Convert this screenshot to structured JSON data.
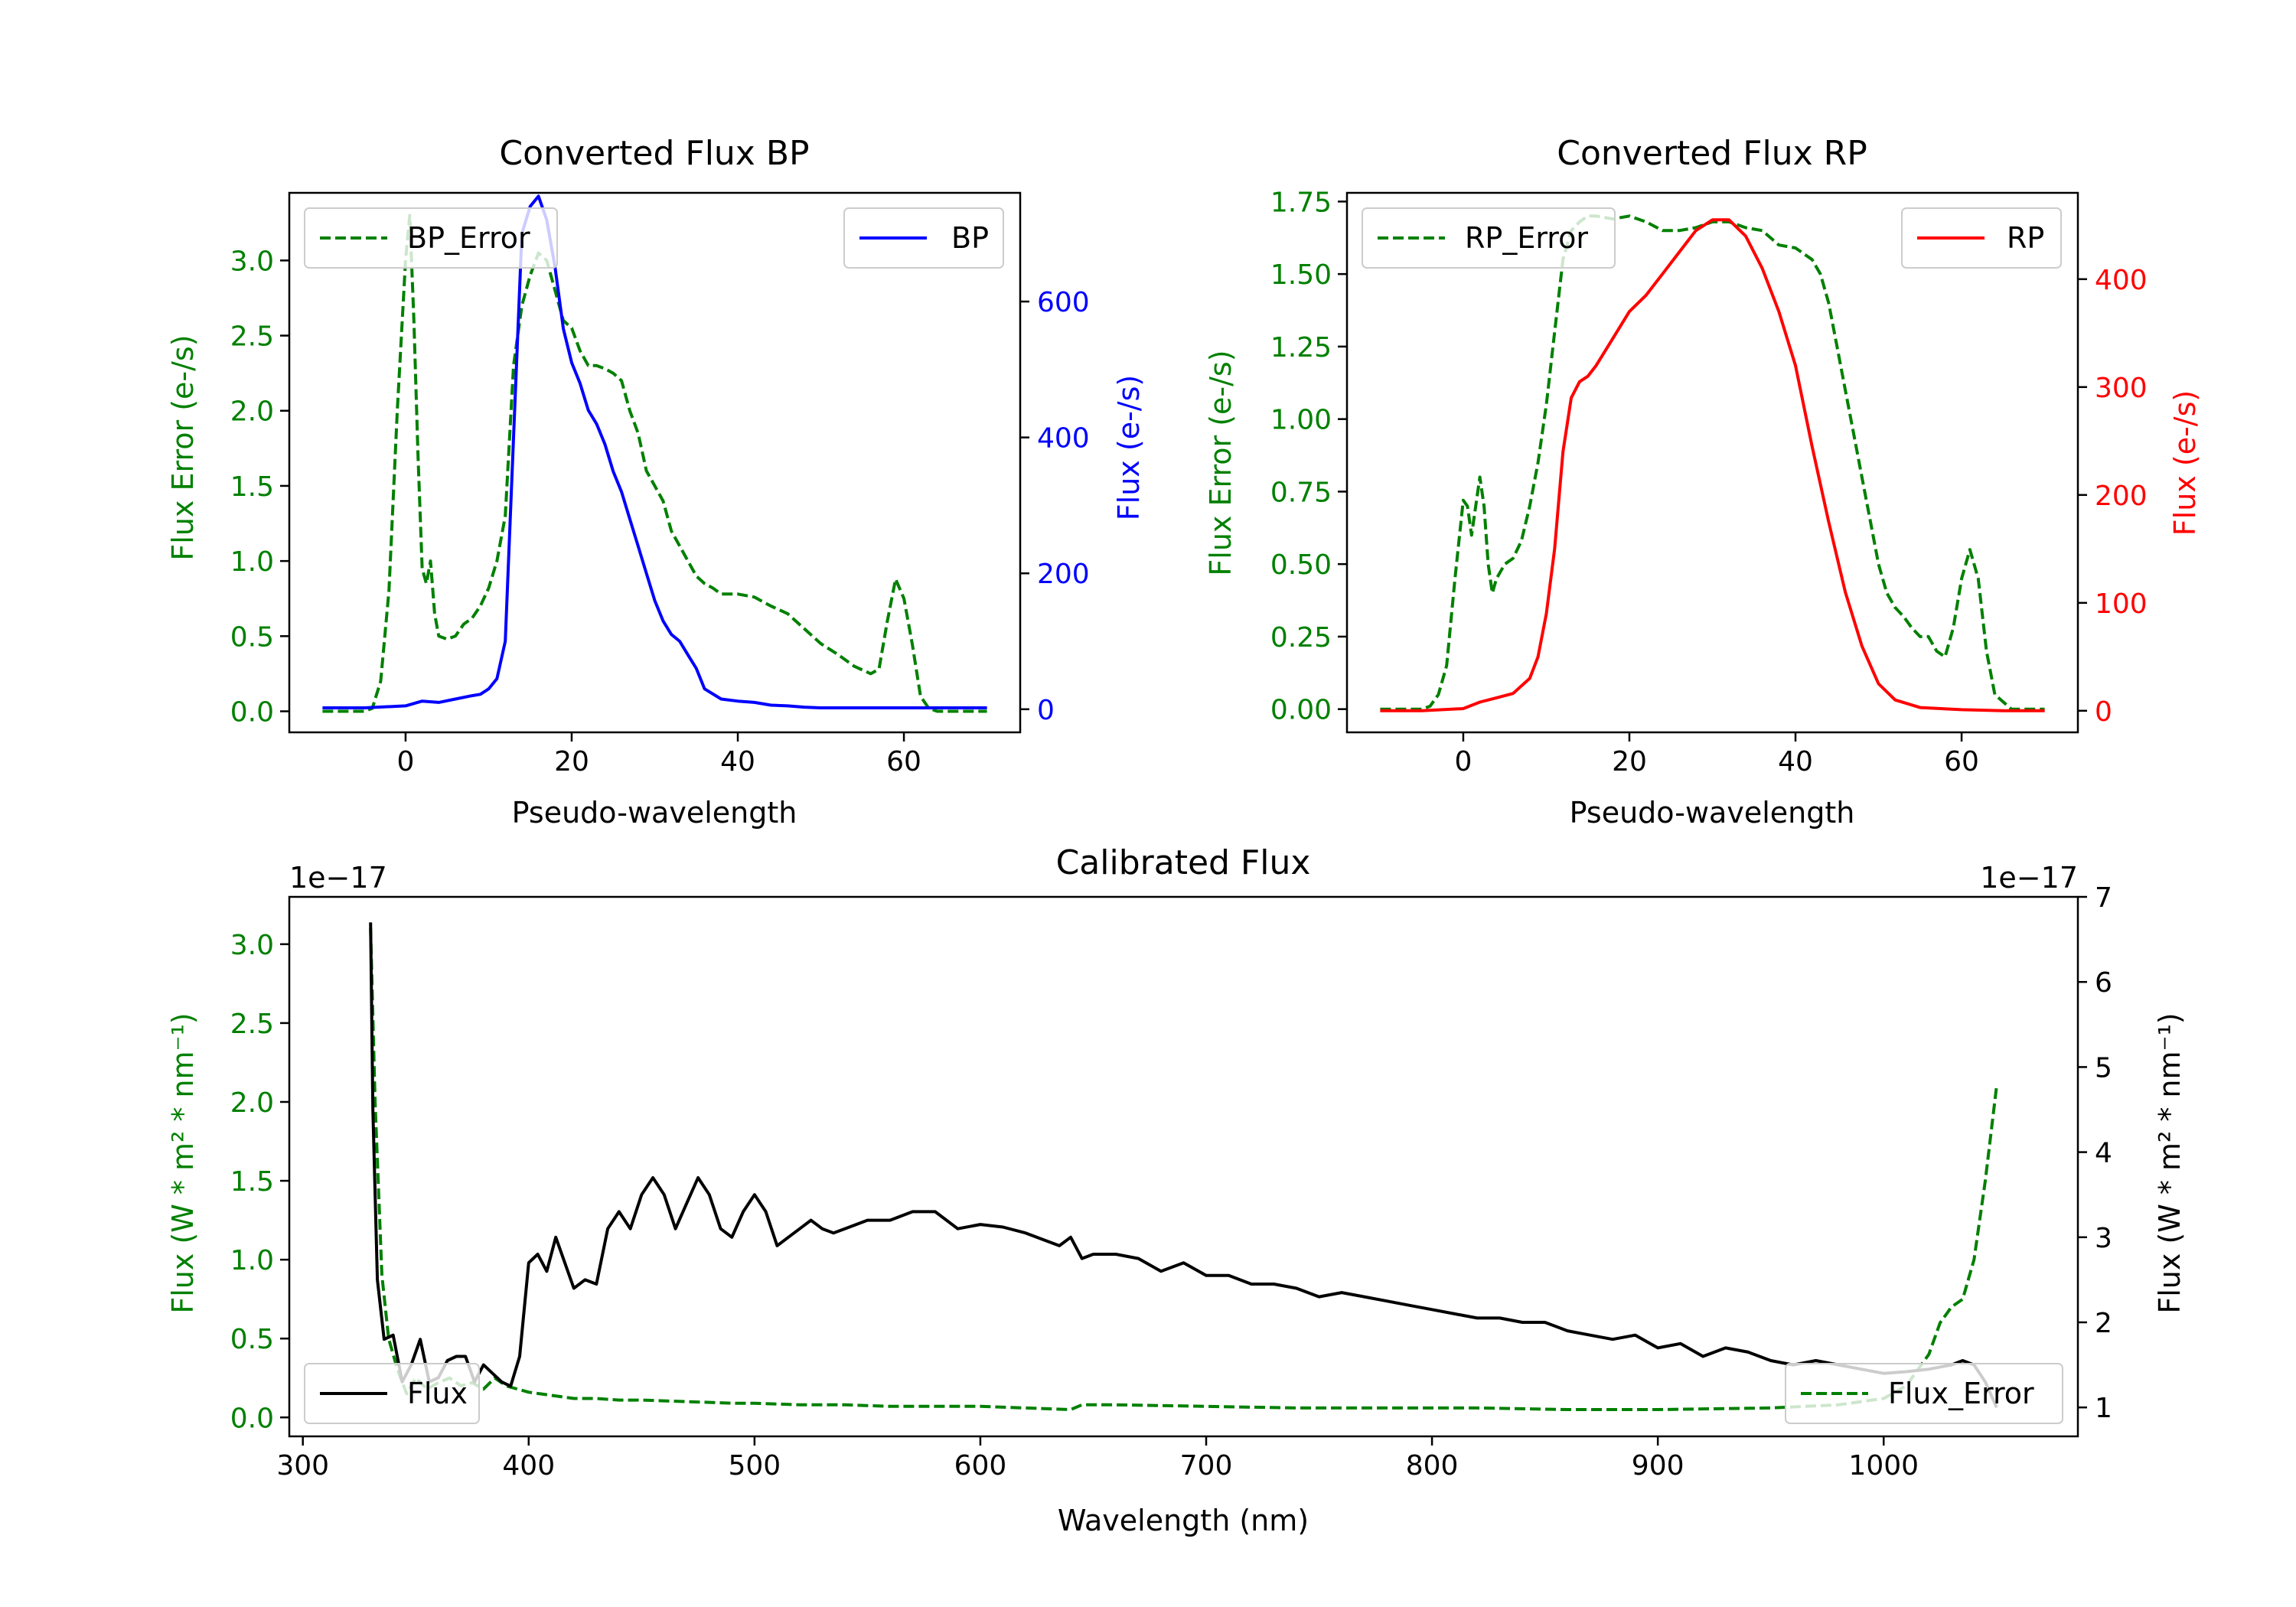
{
  "colors": {
    "green": "#008000",
    "blue": "#0000ff",
    "red": "#ff0000",
    "black": "#000000"
  },
  "chart_data": [
    {
      "id": "bp",
      "type": "line",
      "title": "Converted Flux BP",
      "xlabel": "Pseudo-wavelength",
      "ylabel_left": "Flux Error (e-/s)",
      "ylabel_right": "Flux (e-/s)",
      "xlim": [
        -14,
        74
      ],
      "ylim_left": [
        -0.14,
        3.45
      ],
      "ylim_right": [
        -34,
        760
      ],
      "xticks": [
        0,
        20,
        40,
        60
      ],
      "yticks_left": [
        "0.0",
        "0.5",
        "1.0",
        "1.5",
        "2.0",
        "2.5",
        "3.0"
      ],
      "yticks_right": [
        "0",
        "200",
        "400",
        "600"
      ],
      "series": [
        {
          "name": "BP_Error",
          "axis": "left",
          "style": "dashed",
          "color": "green",
          "x": [
            -10,
            -5,
            -4,
            -3,
            -2,
            -1,
            0,
            0.5,
            1,
            1.5,
            2,
            2.5,
            3,
            3.5,
            4,
            5,
            6,
            7,
            8,
            9,
            10,
            11,
            12,
            13,
            14,
            15,
            16,
            17,
            18,
            19,
            20,
            21,
            22,
            23,
            24,
            25,
            26,
            27,
            28,
            29,
            30,
            31,
            32,
            33,
            34,
            35,
            36,
            37,
            38,
            40,
            42,
            44,
            46,
            48,
            50,
            52,
            54,
            56,
            57,
            58,
            59,
            60,
            61,
            62,
            63,
            64,
            66,
            68,
            70
          ],
          "y": [
            0.0,
            0.0,
            0.02,
            0.2,
            0.8,
            2.0,
            3.0,
            3.3,
            2.6,
            1.7,
            0.95,
            0.85,
            1.0,
            0.65,
            0.5,
            0.48,
            0.5,
            0.58,
            0.62,
            0.7,
            0.82,
            1.0,
            1.3,
            2.3,
            2.7,
            2.9,
            3.05,
            3.0,
            2.8,
            2.6,
            2.55,
            2.4,
            2.3,
            2.3,
            2.28,
            2.25,
            2.2,
            2.0,
            1.85,
            1.6,
            1.5,
            1.4,
            1.2,
            1.1,
            1.0,
            0.9,
            0.85,
            0.82,
            0.78,
            0.78,
            0.76,
            0.7,
            0.65,
            0.55,
            0.45,
            0.38,
            0.3,
            0.25,
            0.28,
            0.6,
            0.88,
            0.75,
            0.45,
            0.1,
            0.02,
            0.0,
            0.0,
            0.0,
            0.0
          ]
        },
        {
          "name": "BP",
          "axis": "right",
          "style": "solid",
          "color": "blue",
          "x": [
            -10,
            -5,
            0,
            2,
            4,
            6,
            8,
            9,
            10,
            11,
            12,
            13,
            14,
            15,
            16,
            17,
            18,
            19,
            20,
            21,
            22,
            23,
            24,
            25,
            26,
            27,
            28,
            29,
            30,
            31,
            32,
            33,
            34,
            35,
            36,
            38,
            40,
            42,
            44,
            46,
            48,
            50,
            55,
            60,
            65,
            70
          ],
          "y": [
            2,
            2,
            5,
            12,
            10,
            15,
            20,
            22,
            30,
            45,
            100,
            400,
            700,
            740,
            755,
            720,
            650,
            560,
            510,
            480,
            440,
            420,
            390,
            350,
            320,
            280,
            240,
            200,
            160,
            130,
            110,
            100,
            80,
            60,
            30,
            15,
            12,
            10,
            6,
            5,
            3,
            2,
            2,
            2,
            2,
            2
          ]
        }
      ],
      "legend_left": "BP_Error",
      "legend_right": "BP"
    },
    {
      "id": "rp",
      "type": "line",
      "title": "Converted Flux RP",
      "xlabel": "Pseudo-wavelength",
      "ylabel_left": "Flux Error (e-/s)",
      "ylabel_right": "Flux (e-/s)",
      "xlim": [
        -14,
        74
      ],
      "ylim_left": [
        -0.08,
        1.78
      ],
      "ylim_right": [
        -20,
        480
      ],
      "xticks": [
        0,
        20,
        40,
        60
      ],
      "yticks_left": [
        "0.00",
        "0.25",
        "0.50",
        "0.75",
        "1.00",
        "1.25",
        "1.50",
        "1.75"
      ],
      "yticks_right": [
        "0",
        "100",
        "200",
        "300",
        "400"
      ],
      "series": [
        {
          "name": "RP_Error",
          "axis": "left",
          "style": "dashed",
          "color": "green",
          "x": [
            -10,
            -5,
            -4,
            -3,
            -2,
            -1,
            0,
            0.5,
            1,
            1.5,
            2,
            2.5,
            3,
            3.5,
            4,
            5,
            6,
            7,
            8,
            9,
            10,
            11,
            12,
            13,
            14,
            15,
            16,
            18,
            20,
            22,
            24,
            26,
            28,
            30,
            32,
            34,
            36,
            38,
            40,
            42,
            43,
            44,
            45,
            46,
            47,
            48,
            49,
            50,
            51,
            52,
            53,
            54,
            55,
            56,
            57,
            58,
            59,
            60,
            61,
            62,
            63,
            64,
            66,
            68,
            70
          ],
          "y": [
            0.0,
            0.0,
            0.01,
            0.05,
            0.15,
            0.45,
            0.72,
            0.7,
            0.6,
            0.7,
            0.8,
            0.7,
            0.5,
            0.4,
            0.45,
            0.5,
            0.52,
            0.58,
            0.7,
            0.85,
            1.05,
            1.3,
            1.55,
            1.65,
            1.68,
            1.7,
            1.7,
            1.69,
            1.7,
            1.68,
            1.65,
            1.65,
            1.66,
            1.68,
            1.68,
            1.66,
            1.65,
            1.6,
            1.59,
            1.55,
            1.5,
            1.4,
            1.25,
            1.1,
            0.95,
            0.8,
            0.65,
            0.5,
            0.4,
            0.35,
            0.32,
            0.28,
            0.25,
            0.25,
            0.2,
            0.18,
            0.28,
            0.45,
            0.55,
            0.45,
            0.2,
            0.05,
            0.0,
            0.0,
            0.0
          ]
        },
        {
          "name": "RP",
          "axis": "right",
          "style": "solid",
          "color": "red",
          "x": [
            -10,
            -5,
            0,
            2,
            4,
            6,
            8,
            9,
            10,
            11,
            12,
            13,
            14,
            15,
            16,
            18,
            20,
            22,
            24,
            26,
            28,
            30,
            32,
            34,
            36,
            38,
            40,
            42,
            44,
            46,
            48,
            50,
            52,
            55,
            60,
            65,
            70
          ],
          "y": [
            0,
            0,
            2,
            8,
            12,
            16,
            30,
            50,
            90,
            150,
            240,
            290,
            305,
            310,
            320,
            345,
            370,
            385,
            405,
            425,
            445,
            455,
            455,
            440,
            410,
            370,
            320,
            245,
            175,
            110,
            60,
            25,
            10,
            3,
            1,
            0,
            0
          ]
        }
      ],
      "legend_left": "RP_Error",
      "legend_right": "RP"
    },
    {
      "id": "cal",
      "type": "line",
      "title": "Calibrated Flux",
      "xlabel": "Wavelength (nm)",
      "ylabel_left": "Flux (W * m² * nm⁻¹)",
      "ylabel_right": "Flux (W * m² * nm⁻¹)",
      "offset_left": "1e−17",
      "offset_right": "1e−17",
      "xlim": [
        294,
        1086
      ],
      "ylim_left": [
        -0.12,
        3.3
      ],
      "ylim_right": [
        0.66,
        7.0
      ],
      "xticks": [
        300,
        400,
        500,
        600,
        700,
        800,
        900,
        1000
      ],
      "yticks_left": [
        "0.0",
        "0.5",
        "1.0",
        "1.5",
        "2.0",
        "2.5",
        "3.0"
      ],
      "yticks_right": [
        "1",
        "2",
        "3",
        "4",
        "5",
        "6",
        "7"
      ],
      "series": [
        {
          "name": "Flux_Error",
          "axis": "left",
          "style": "dashed",
          "color": "green",
          "x": [
            330,
            332,
            335,
            338,
            342,
            346,
            350,
            355,
            360,
            365,
            370,
            375,
            380,
            385,
            390,
            395,
            400,
            410,
            420,
            430,
            440,
            450,
            470,
            490,
            500,
            520,
            540,
            560,
            580,
            600,
            620,
            640,
            645,
            660,
            700,
            740,
            780,
            820,
            860,
            900,
            950,
            980,
            1000,
            1010,
            1020,
            1025,
            1030,
            1035,
            1040,
            1045,
            1050
          ],
          "y": [
            3.1,
            2.0,
            0.9,
            0.5,
            0.3,
            0.15,
            0.25,
            0.18,
            0.22,
            0.25,
            0.2,
            0.22,
            0.18,
            0.25,
            0.2,
            0.18,
            0.16,
            0.14,
            0.12,
            0.12,
            0.11,
            0.11,
            0.1,
            0.09,
            0.09,
            0.08,
            0.08,
            0.07,
            0.07,
            0.07,
            0.06,
            0.05,
            0.08,
            0.08,
            0.07,
            0.06,
            0.06,
            0.06,
            0.05,
            0.05,
            0.06,
            0.08,
            0.12,
            0.2,
            0.4,
            0.6,
            0.7,
            0.75,
            1.0,
            1.5,
            2.1
          ]
        },
        {
          "name": "Flux",
          "axis": "right",
          "style": "solid",
          "color": "black",
          "x": [
            330,
            331,
            333,
            336,
            340,
            344,
            348,
            352,
            356,
            360,
            364,
            368,
            372,
            376,
            380,
            384,
            388,
            392,
            396,
            400,
            404,
            408,
            412,
            416,
            420,
            425,
            430,
            435,
            440,
            445,
            450,
            455,
            460,
            465,
            470,
            475,
            480,
            485,
            490,
            495,
            500,
            505,
            510,
            515,
            520,
            525,
            530,
            535,
            540,
            550,
            560,
            570,
            580,
            590,
            600,
            610,
            620,
            630,
            635,
            640,
            645,
            650,
            660,
            670,
            680,
            690,
            700,
            710,
            720,
            730,
            740,
            750,
            760,
            770,
            780,
            790,
            800,
            810,
            820,
            830,
            840,
            850,
            860,
            870,
            880,
            890,
            900,
            910,
            920,
            930,
            940,
            950,
            960,
            970,
            980,
            990,
            1000,
            1010,
            1020,
            1030,
            1035,
            1040,
            1045,
            1050
          ],
          "y": [
            6.7,
            4.5,
            2.5,
            1.8,
            1.85,
            1.3,
            1.5,
            1.8,
            1.3,
            1.35,
            1.55,
            1.6,
            1.6,
            1.3,
            1.5,
            1.4,
            1.3,
            1.25,
            1.6,
            2.7,
            2.8,
            2.6,
            3.0,
            2.7,
            2.4,
            2.5,
            2.45,
            3.1,
            3.3,
            3.1,
            3.5,
            3.7,
            3.5,
            3.1,
            3.4,
            3.7,
            3.5,
            3.1,
            3.0,
            3.3,
            3.5,
            3.3,
            2.9,
            3.0,
            3.1,
            3.2,
            3.1,
            3.05,
            3.1,
            3.2,
            3.2,
            3.3,
            3.3,
            3.1,
            3.15,
            3.12,
            3.05,
            2.95,
            2.9,
            3.0,
            2.75,
            2.8,
            2.8,
            2.75,
            2.6,
            2.7,
            2.55,
            2.55,
            2.45,
            2.45,
            2.4,
            2.3,
            2.35,
            2.3,
            2.25,
            2.2,
            2.15,
            2.1,
            2.05,
            2.05,
            2.0,
            2.0,
            1.9,
            1.85,
            1.8,
            1.85,
            1.7,
            1.75,
            1.6,
            1.7,
            1.65,
            1.55,
            1.5,
            1.55,
            1.5,
            1.45,
            1.4,
            1.42,
            1.45,
            1.5,
            1.55,
            1.5,
            1.3,
            1.0
          ]
        }
      ],
      "legend_left": "Flux",
      "legend_right": "Flux_Error"
    }
  ]
}
